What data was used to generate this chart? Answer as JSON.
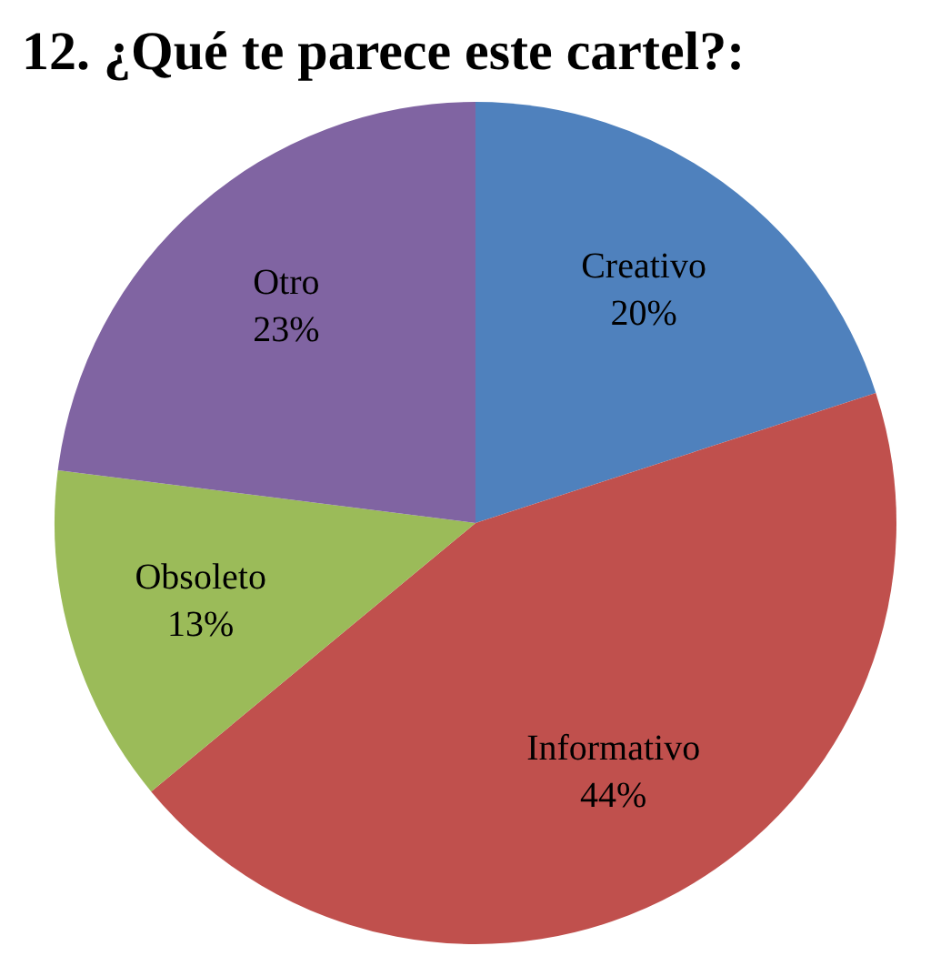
{
  "chart_data": {
    "type": "pie",
    "title": "12. ¿Qué te parece este cartel?:",
    "categories": [
      "Creativo",
      "Informativo",
      "Obsoleto",
      "Otro"
    ],
    "values": [
      20,
      44,
      13,
      23
    ],
    "value_labels": [
      "20%",
      "44%",
      "13%",
      "23%"
    ],
    "colors": [
      "#4f81bd",
      "#c0504d",
      "#9bbb59",
      "#8064a2"
    ],
    "legend": false
  }
}
